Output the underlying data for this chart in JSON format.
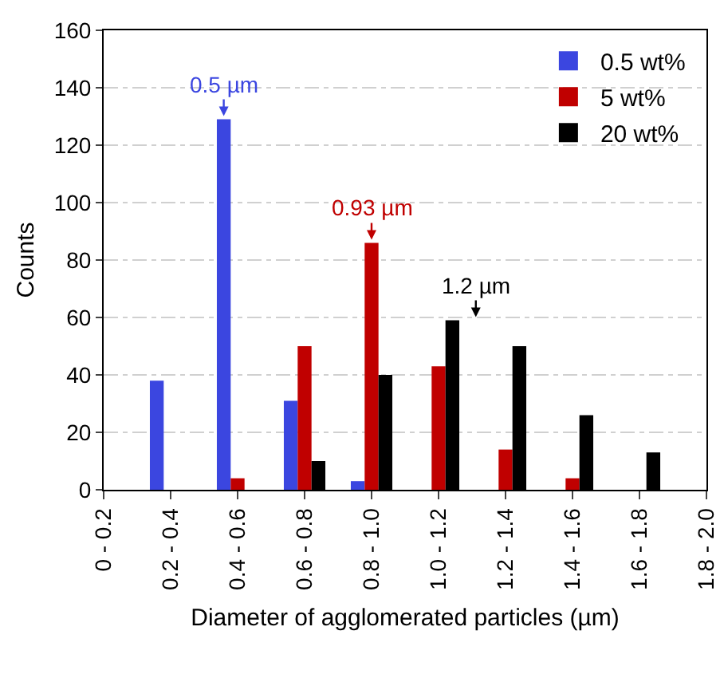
{
  "chart_data": {
    "type": "bar",
    "xlabel": "Diameter of agglomerated particles (µm)",
    "ylabel": "Counts",
    "categories": [
      "0 - 0.2",
      "0.2 - 0.4",
      "0.4 - 0.6",
      "0.6 - 0.8",
      "0.8 - 1.0",
      "1.0 - 1.2",
      "1.2 - 1.4",
      "1.4 - 1.6",
      "1.6 - 1.8",
      "1.8 - 2.0"
    ],
    "series": [
      {
        "name": "0.5 wt%",
        "color": "#3b46e0",
        "values": [
          0,
          38,
          129,
          31,
          3,
          0,
          0,
          0,
          0,
          0
        ]
      },
      {
        "name": "5 wt%",
        "color": "#c00000",
        "values": [
          0,
          0,
          4,
          50,
          86,
          43,
          14,
          4,
          0,
          0
        ]
      },
      {
        "name": "20 wt%",
        "color": "#000000",
        "values": [
          0,
          0,
          0,
          10,
          40,
          59,
          50,
          26,
          13,
          0
        ]
      }
    ],
    "annotations": [
      "0.5 µm",
      "0.93 µm",
      "1.2 µm"
    ],
    "ylim": [
      0,
      160
    ],
    "yticks": [
      0,
      20,
      40,
      60,
      80,
      100,
      120,
      140,
      160
    ],
    "grid": "y",
    "legend": "top right"
  }
}
